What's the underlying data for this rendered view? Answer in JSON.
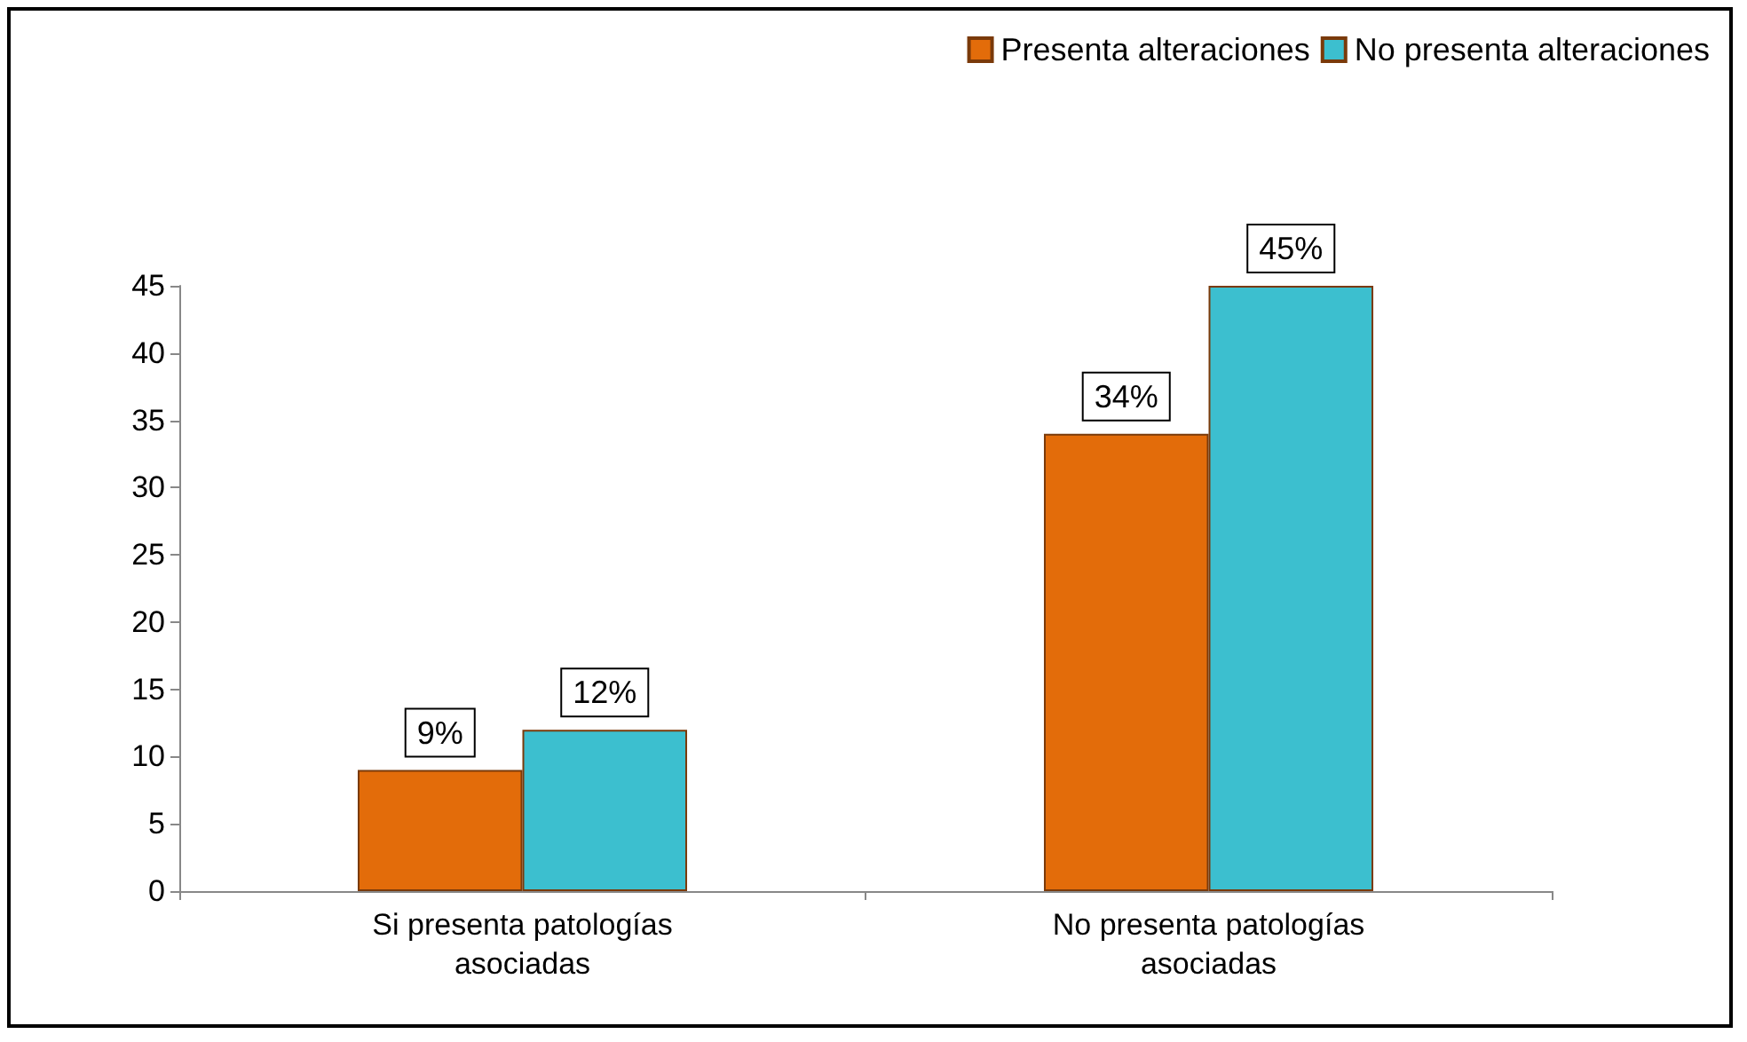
{
  "chart_data": {
    "type": "bar",
    "categories": [
      "Si presenta patologías\nasociadas",
      "No presenta patologías\nasociadas"
    ],
    "series": [
      {
        "name": "Presenta alteraciones",
        "color": "#e36c0a",
        "values": [
          9,
          34
        ],
        "value_labels": [
          "9%",
          "34%"
        ]
      },
      {
        "name": "No presenta alteraciones",
        "color": "#3cbfcf",
        "values": [
          12,
          45
        ],
        "value_labels": [
          "12%",
          "45%"
        ]
      }
    ],
    "ylim": [
      0,
      45
    ],
    "yticks": [
      0,
      5,
      10,
      15,
      20,
      25,
      30,
      35,
      40,
      45
    ],
    "grid": false,
    "legend": "top right"
  }
}
